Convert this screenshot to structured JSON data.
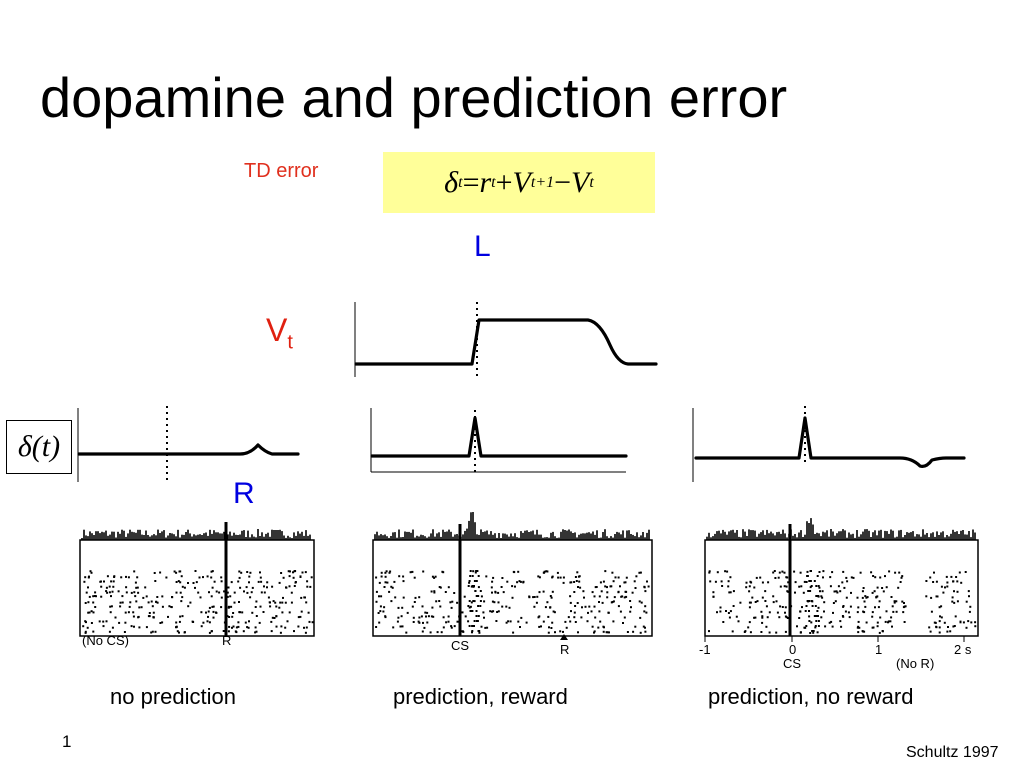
{
  "title": "dopamine and prediction error",
  "td_error_label": "TD error",
  "equation": {
    "delta": "δ",
    "delta_sub": "t",
    "eq": " = ",
    "r": "r",
    "r_sub": "t",
    "plus": " + ",
    "v1": "V",
    "v1_sub": "t+1",
    "minus": " − ",
    "v2": "V",
    "v2_sub": "t"
  },
  "L_label": "L",
  "vt_label": {
    "main": "V",
    "sub": "t"
  },
  "delta_label": "δ(t)",
  "R_label": "R",
  "panels": [
    {
      "caption": "no prediction",
      "raster_labels": [
        "(No CS)",
        "R"
      ]
    },
    {
      "caption": "prediction, reward",
      "raster_labels": [
        "CS",
        "R"
      ]
    },
    {
      "caption": "prediction, no reward",
      "raster_labels": [
        "-1",
        "0",
        "1",
        "2 s",
        "CS",
        "(No R)"
      ]
    }
  ],
  "page_number": "1",
  "citation": "Schultz 1997",
  "colors": {
    "td_label": "#e0301e",
    "equation_bg": "#ffff99",
    "L": "#0000e0",
    "Vt": "#e02010",
    "R": "#0000e0"
  }
}
